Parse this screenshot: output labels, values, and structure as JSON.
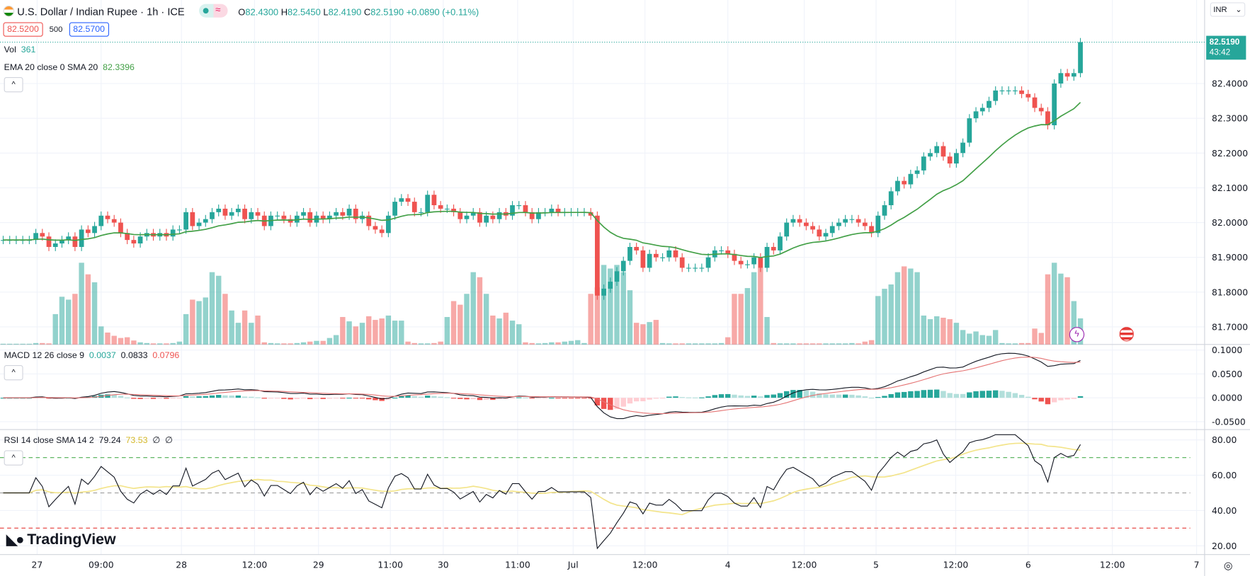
{
  "header": {
    "symbol_title": "U.S. Dollar / Indian Rupee · 1h · ICE",
    "market_status_icon": "dot-and-wave-icon",
    "ohlc": {
      "o_label": "O",
      "o": "82.4300",
      "h_label": "H",
      "h": "82.5450",
      "l_label": "L",
      "l": "82.4190",
      "c_label": "C",
      "c": "82.5190",
      "change": "+0.0890 (+0.11%)"
    },
    "bid": "82.5200",
    "spread": "500",
    "ask": "82.5700"
  },
  "volume_legend": {
    "label": "Vol",
    "value": "361"
  },
  "ema_legend": {
    "label": "EMA 20 close 0 SMA 20",
    "value": "82.3396"
  },
  "macd_legend": {
    "label": "MACD 12 26 close 9",
    "hist": "0.0037",
    "macd": "0.0833",
    "signal": "0.0796"
  },
  "rsi_legend": {
    "label": "RSI 14 close SMA 14 2",
    "rsi": "79.24",
    "sma": "73.53",
    "v3": "∅",
    "v4": "∅"
  },
  "price_axis": {
    "currency": "INR",
    "labels": [
      "82.4000",
      "82.3000",
      "82.2000",
      "82.1000",
      "82.0000",
      "81.9000",
      "81.8000",
      "81.7000"
    ],
    "last_price": "82.5190",
    "countdown": "43:42"
  },
  "macd_axis": [
    "0.1000",
    "0.0500",
    "0.0000",
    "-0.0500"
  ],
  "rsi_axis": [
    "80.00",
    "60.00",
    "40.00",
    "20.00"
  ],
  "rsi_levels": [
    70,
    50,
    30
  ],
  "time_axis": [
    {
      "label": "27",
      "bar": 5.2
    },
    {
      "label": "09:00",
      "bar": 15
    },
    {
      "label": "28",
      "bar": 27.3
    },
    {
      "label": "12:00",
      "bar": 38.5
    },
    {
      "label": "29",
      "bar": 48.3
    },
    {
      "label": "11:00",
      "bar": 59.3
    },
    {
      "label": "30",
      "bar": 67.4
    },
    {
      "label": "11:00",
      "bar": 78.8
    },
    {
      "label": "Jul",
      "bar": 87.3
    },
    {
      "label": "12:00",
      "bar": 98.3
    },
    {
      "label": "4",
      "bar": 111
    },
    {
      "label": "12:00",
      "bar": 122.7
    },
    {
      "label": "5",
      "bar": 133.7
    },
    {
      "label": "12:00",
      "bar": 145.9
    },
    {
      "label": "6",
      "bar": 157
    },
    {
      "label": "12:00",
      "bar": 169.9
    },
    {
      "label": "7",
      "bar": 182.8
    }
  ],
  "brand": "TradingView",
  "colors": {
    "up": "#26a69a",
    "down": "#ef5350",
    "ema": "#43a047",
    "macd": "#131722",
    "signal": "#e57373",
    "rsi": "#131722",
    "rsi_sma": "#f3e48a"
  },
  "chart_data": {
    "type": "candlestick",
    "title": "U.S. Dollar / Indian Rupee · 1h · ICE",
    "ylim": [
      81.66,
      82.64
    ],
    "closes": [
      81.95,
      81.95,
      81.95,
      81.95,
      81.95,
      81.97,
      81.96,
      81.93,
      81.94,
      81.95,
      81.96,
      81.93,
      81.98,
      81.97,
      81.99,
      82.02,
      82.01,
      82.0,
      81.97,
      81.95,
      81.94,
      81.96,
      81.97,
      81.96,
      81.97,
      81.96,
      81.98,
      81.98,
      82.03,
      81.99,
      82.0,
      82.01,
      82.03,
      82.04,
      82.02,
      82.03,
      82.04,
      82.01,
      82.03,
      82.02,
      81.99,
      82.02,
      82.02,
      82.01,
      82.0,
      82.02,
      82.03,
      82.0,
      82.02,
      82.01,
      82.02,
      82.03,
      82.02,
      82.04,
      82.01,
      82.02,
      81.99,
      81.98,
      81.97,
      82.02,
      82.06,
      82.07,
      82.06,
      82.03,
      82.03,
      82.08,
      82.05,
      82.04,
      82.04,
      82.03,
      82.01,
      82.02,
      82.03,
      82.0,
      82.02,
      82.01,
      82.03,
      82.02,
      82.05,
      82.05,
      82.03,
      82.01,
      82.03,
      82.03,
      82.04,
      82.03,
      82.03,
      82.03,
      82.03,
      82.03,
      82.02,
      81.79,
      81.81,
      81.83,
      81.86,
      81.89,
      81.93,
      81.92,
      81.87,
      81.91,
      81.9,
      81.9,
      81.92,
      81.9,
      81.87,
      81.87,
      81.87,
      81.87,
      81.9,
      81.92,
      81.92,
      81.91,
      81.89,
      81.88,
      81.88,
      81.9,
      81.87,
      81.93,
      81.92,
      81.96,
      82.0,
      82.01,
      82.0,
      81.99,
      81.98,
      81.96,
      81.97,
      81.99,
      82.0,
      82.01,
      82.01,
      82.0,
      81.99,
      81.97,
      82.02,
      82.05,
      82.09,
      82.12,
      82.11,
      82.14,
      82.15,
      82.19,
      82.2,
      82.22,
      82.19,
      82.17,
      82.2,
      82.23,
      82.3,
      82.32,
      82.33,
      82.35,
      82.38,
      82.38,
      82.38,
      82.38,
      82.37,
      82.36,
      82.33,
      82.32,
      82.28,
      82.4,
      82.43,
      82.42,
      82.43,
      82.519
    ],
    "volumes": [
      10,
      10,
      10,
      10,
      10,
      20,
      20,
      15,
      420,
      660,
      620,
      700,
      1130,
      970,
      860,
      250,
      165,
      120,
      90,
      100,
      55,
      30,
      20,
      15,
      15,
      15,
      20,
      40,
      420,
      620,
      600,
      650,
      1000,
      950,
      700,
      470,
      300,
      470,
      300,
      400,
      30,
      20,
      15,
      15,
      15,
      20,
      30,
      40,
      50,
      50,
      90,
      130,
      380,
      320,
      250,
      300,
      390,
      340,
      360,
      400,
      330,
      330,
      40,
      20,
      15,
      15,
      20,
      40,
      380,
      600,
      550,
      700,
      1000,
      930,
      700,
      400,
      360,
      440,
      330,
      280,
      30,
      20,
      15,
      20,
      30,
      30,
      40,
      50,
      60,
      20,
      700,
      790,
      1100,
      1050,
      1100,
      1000,
      750,
      300,
      280,
      310,
      340,
      20,
      15,
      15,
      15,
      15,
      15,
      15,
      15,
      15,
      20,
      100,
      700,
      700,
      780,
      1000,
      1060,
      380,
      20,
      15,
      15,
      15,
      15,
      15,
      15,
      15,
      15,
      15,
      15,
      15,
      20,
      15,
      40,
      60,
      670,
      770,
      830,
      1000,
      1080,
      1050,
      1000,
      400,
      350,
      390,
      370,
      350,
      300,
      200,
      150,
      180,
      130,
      120,
      200,
      20,
      15,
      15,
      20,
      20,
      220,
      160,
      970,
      1130,
      980,
      930,
      600,
      361
    ]
  }
}
